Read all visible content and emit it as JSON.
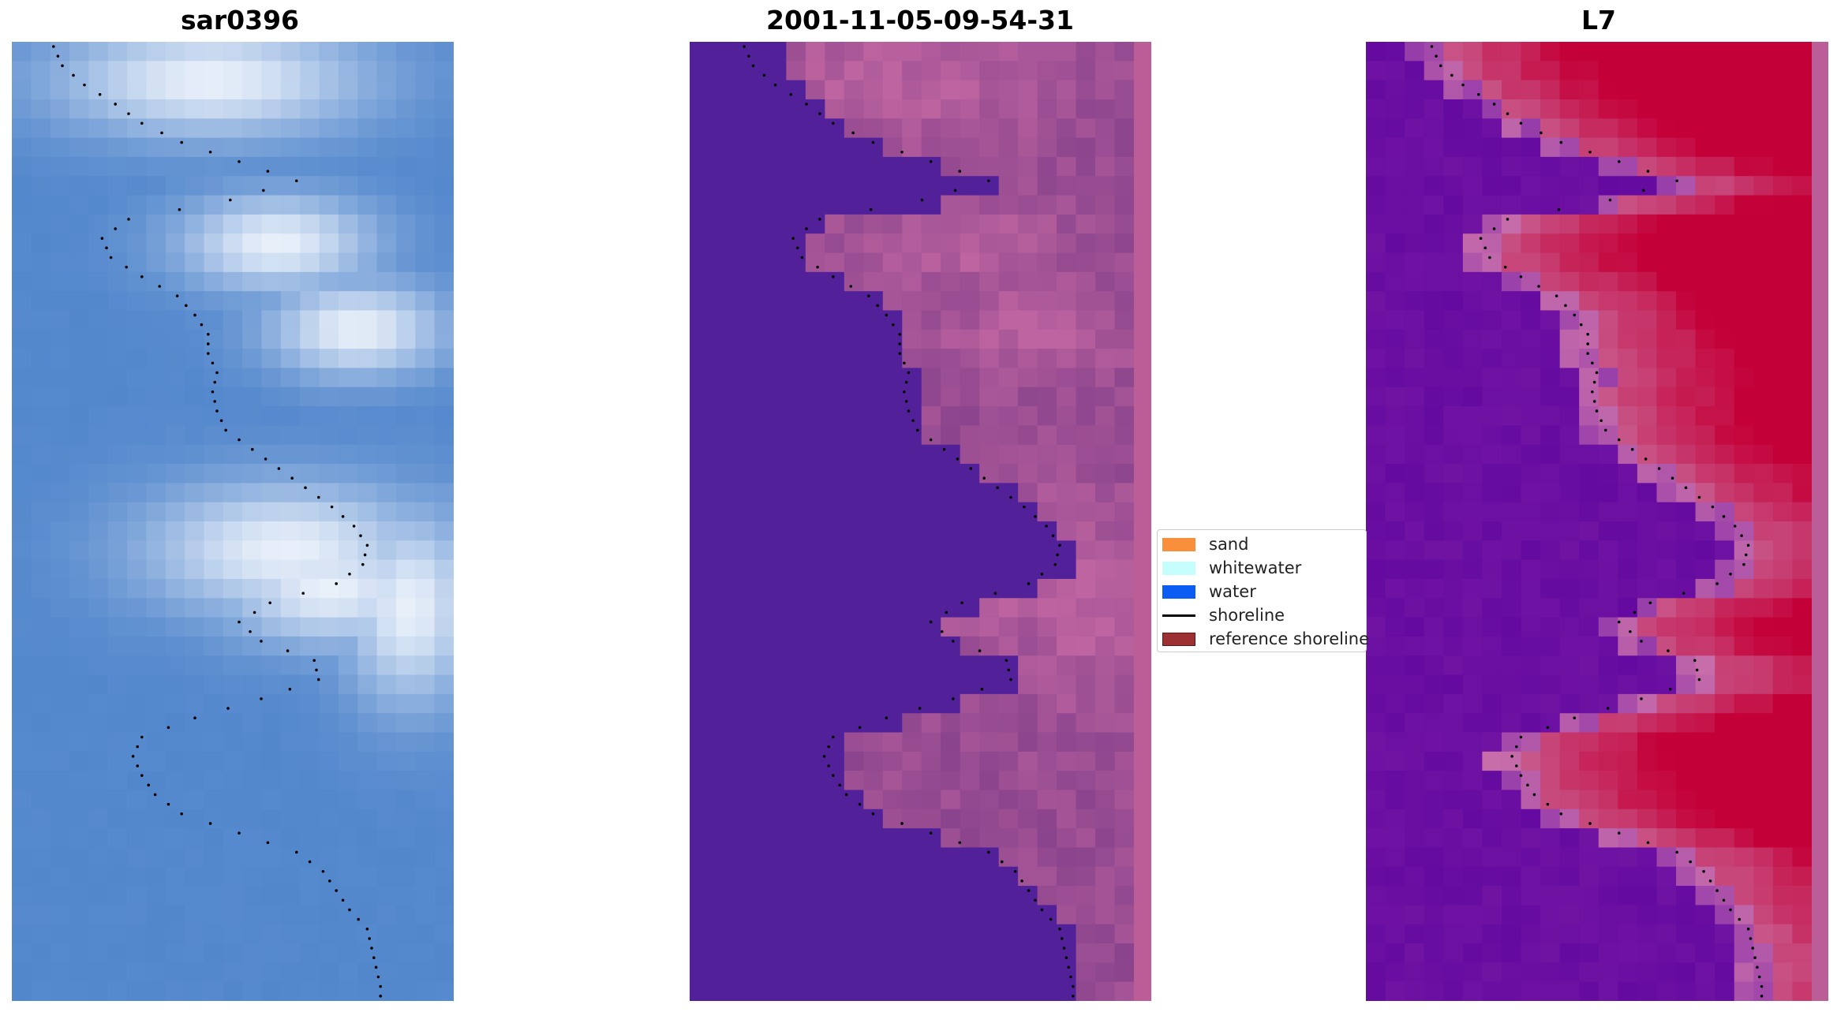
{
  "panels": [
    {
      "title": "sar0396"
    },
    {
      "title": "2001-11-05-09-54-31"
    },
    {
      "title": "L7"
    }
  ],
  "legend": {
    "items": [
      {
        "label": "sand",
        "color": "#f98e3b",
        "kind": "patch"
      },
      {
        "label": "whitewater",
        "color": "#c6fefe",
        "kind": "patch"
      },
      {
        "label": "water",
        "color": "#0b5cf2",
        "kind": "patch"
      },
      {
        "label": "shoreline",
        "color": "#000000",
        "kind": "line"
      },
      {
        "label": "reference shoreline",
        "color": "#9c3033",
        "kind": "patch"
      }
    ]
  },
  "colors": {
    "rgb_water": "#4a80c8",
    "class_water": "#52219a",
    "class_pink": "#b8609a",
    "index_low": "#6a0da8",
    "index_high": "#c40038"
  }
}
